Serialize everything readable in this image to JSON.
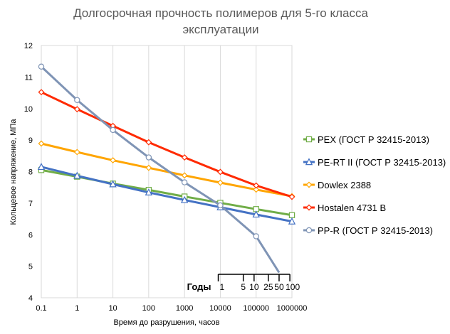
{
  "chart_data": {
    "type": "line",
    "title": "Долгосрочная прочность полимеров для 5-го класса",
    "subtitle": "эксплуатации",
    "xlabel": "Время до разрушения, часов",
    "ylabel": "Кольцевое напряжение, МПа",
    "x_scale": "log",
    "x_ticks": [
      "0.1",
      "1",
      "10",
      "100",
      "1000",
      "10000",
      "100000",
      "1000000"
    ],
    "xlim": [
      0.1,
      1000000
    ],
    "ylim": [
      4,
      12
    ],
    "y_ticks": [
      "4",
      "5",
      "6",
      "7",
      "8",
      "9",
      "10",
      "11",
      "12"
    ],
    "grid": "vertical",
    "legend_position": "right",
    "series": [
      {
        "name": "PEX (ГОСТ Р 32415-2013)",
        "color": "#70ad47",
        "marker": "square",
        "x": [
          0.1,
          1,
          10,
          100,
          1000,
          10000,
          100000,
          1000000
        ],
        "values": [
          8.05,
          7.84,
          7.62,
          7.42,
          7.21,
          7.01,
          6.81,
          6.62
        ]
      },
      {
        "name": "PE-RT II (ГОСТ Р 32415-2013)",
        "color": "#4472c4",
        "marker": "triangle",
        "x": [
          0.1,
          1,
          10,
          100,
          1000,
          10000,
          100000,
          1000000
        ],
        "values": [
          8.15,
          7.87,
          7.6,
          7.34,
          7.1,
          6.87,
          6.64,
          6.42
        ]
      },
      {
        "name": "Dowlex 2388",
        "color": "#ffa500",
        "marker": "diamond",
        "x": [
          0.1,
          1,
          10,
          100,
          1000,
          10000,
          100000,
          1000000
        ],
        "values": [
          8.89,
          8.62,
          8.36,
          8.12,
          7.88,
          7.65,
          7.43,
          7.22
        ]
      },
      {
        "name": "Hostalen 4731 B",
        "color": "#ff2a00",
        "marker": "diamond",
        "x": [
          0.1,
          1,
          10,
          100,
          1000,
          10000,
          100000,
          1000000
        ],
        "values": [
          10.52,
          9.98,
          9.45,
          8.93,
          8.45,
          7.99,
          7.56,
          7.2
        ]
      },
      {
        "name": "PP-R (ГОСТ Р 32415-2013)",
        "color": "#7f94b5",
        "marker": "circle",
        "x": [
          0.1,
          1,
          10,
          100,
          1000,
          10000,
          100000,
          438000
        ],
        "values": [
          11.33,
          10.27,
          9.32,
          8.45,
          7.66,
          6.93,
          5.95,
          4.8
        ],
        "marked_points": 7
      }
    ],
    "annotations": {
      "years_label": "Годы",
      "years_ticks": [
        {
          "label": "1",
          "hours": 8760
        },
        {
          "label": "5",
          "hours": 43800
        },
        {
          "label": "10",
          "hours": 87600
        },
        {
          "label": "25",
          "hours": 219000
        },
        {
          "label": "50",
          "hours": 438000
        },
        {
          "label": "100",
          "hours": 876000
        }
      ]
    }
  }
}
